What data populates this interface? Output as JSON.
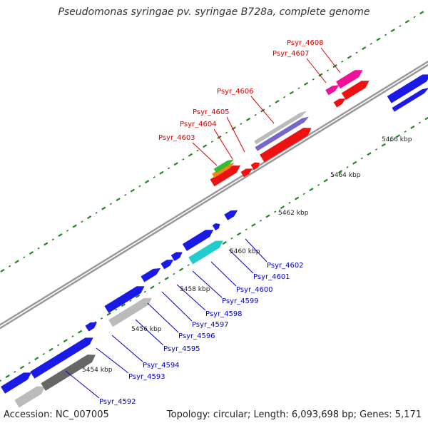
{
  "header": {
    "title": "Pseudomonas syringae pv. syringae B728a, complete genome"
  },
  "footer": {
    "accession": "Accession: NC_007005",
    "summary": "Topology: circular; Length: 6,093,698 bp; Genes: 5,171"
  },
  "colors": {
    "label_top": "#dd0000",
    "label_bottom": "#0000cc",
    "backbone": "#999999",
    "tick": "#228822",
    "gene_blue": "#1a1ae6",
    "gene_red": "#ee1111",
    "gene_magenta": "#ee1199",
    "gene_cyan": "#22cccc",
    "gene_gray": "#bbbbbb",
    "gene_darkgray": "#666666",
    "gene_purple": "#7766cc",
    "gene_green": "#33bb33",
    "gene_orange": "#ee8811"
  },
  "scale_labels": [
    "5454 kbp",
    "5456 kbp",
    "5458 kbp",
    "5460 kbp",
    "5462 kbp",
    "5464 kbp",
    "5466 kbp"
  ],
  "top_genes": [
    "Psyr_4603",
    "Psyr_4604",
    "Psyr_4605",
    "Psyr_4606",
    "Psyr_4607",
    "Psyr_4608"
  ],
  "bottom_genes": [
    "Psyr_4592",
    "Psyr_4593",
    "Psyr_4594",
    "Psyr_4595",
    "Psyr_4596",
    "Psyr_4597",
    "Psyr_4598",
    "Psyr_4599",
    "Psyr_4600",
    "Psyr_4601",
    "Psyr_4602"
  ]
}
